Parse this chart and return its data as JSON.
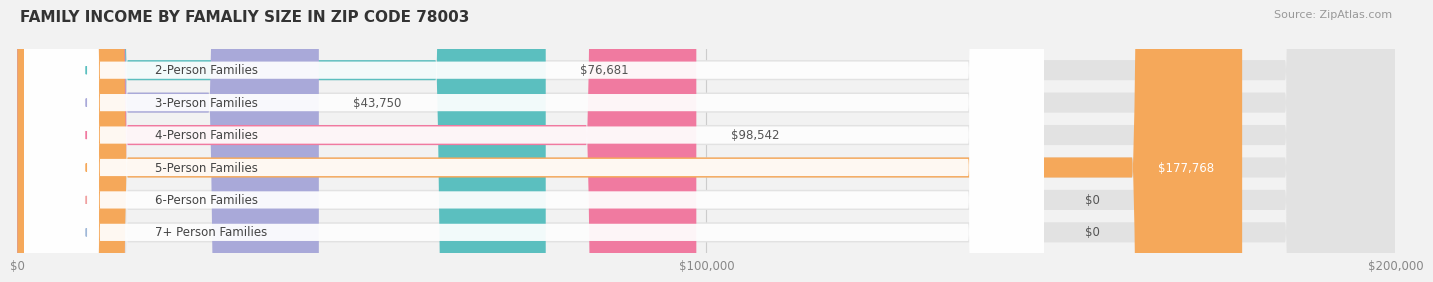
{
  "title": "FAMILY INCOME BY FAMALIY SIZE IN ZIP CODE 78003",
  "source": "Source: ZipAtlas.com",
  "categories": [
    "2-Person Families",
    "3-Person Families",
    "4-Person Families",
    "5-Person Families",
    "6-Person Families",
    "7+ Person Families"
  ],
  "values": [
    76681,
    43750,
    98542,
    177768,
    0,
    0
  ],
  "bar_colors": [
    "#5bbfbf",
    "#a9a9d9",
    "#f07aa0",
    "#f5a85a",
    "#f0a0a0",
    "#a0b8d8"
  ],
  "value_labels": [
    "$76,681",
    "$43,750",
    "$98,542",
    "$177,768",
    "$0",
    "$0"
  ],
  "xlim": [
    0,
    200000
  ],
  "xticks": [
    0,
    100000,
    200000
  ],
  "xticklabels": [
    "$0",
    "$100,000",
    "$200,000"
  ],
  "bar_height": 0.62,
  "background_color": "#f2f2f2",
  "title_fontsize": 11,
  "label_fontsize": 8.5,
  "value_fontsize": 8.5
}
